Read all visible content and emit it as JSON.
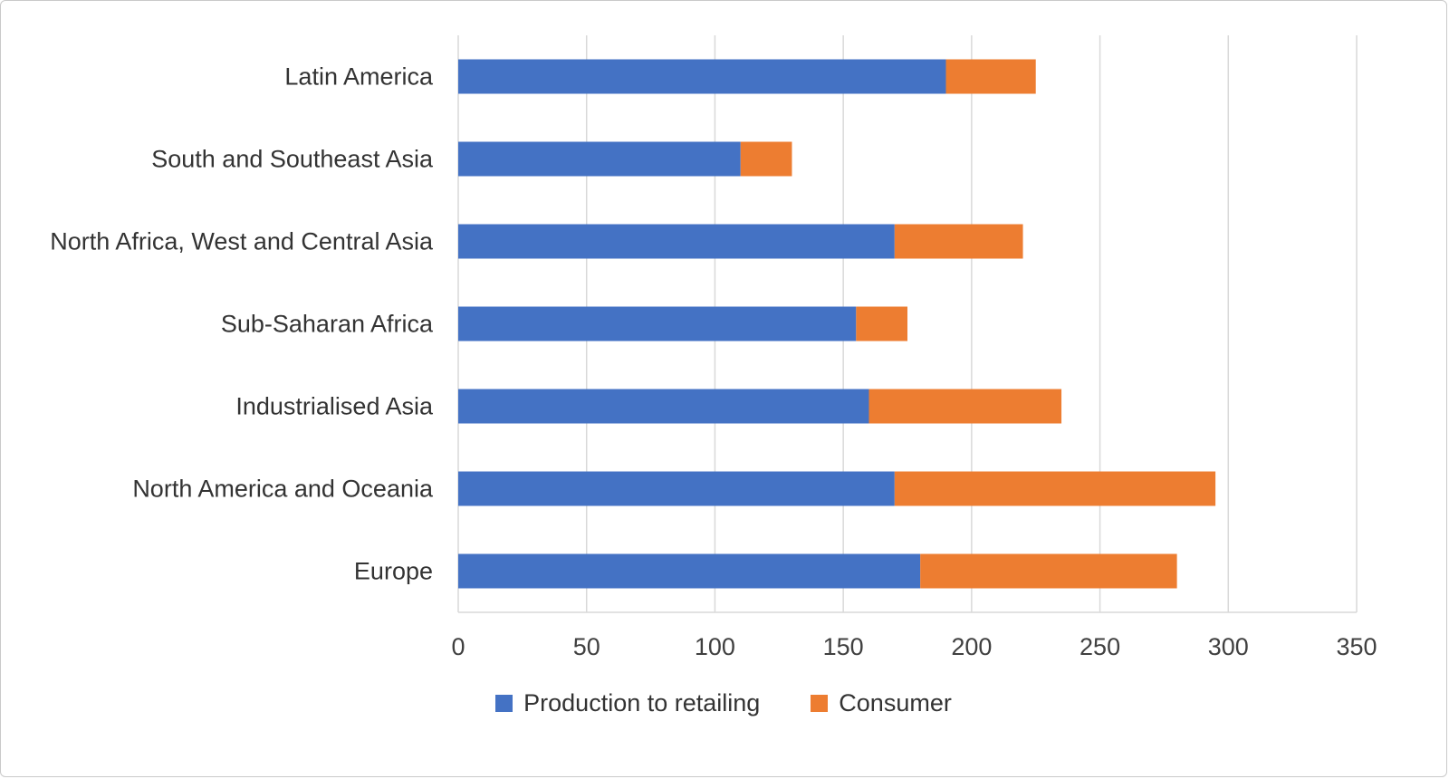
{
  "chart_data": {
    "type": "bar",
    "orientation": "horizontal",
    "stacked": true,
    "title": "",
    "xlabel": "",
    "ylabel": "",
    "categories": [
      "Latin America",
      "South and Southeast Asia",
      "North Africa, West and Central Asia",
      "Sub-Saharan Africa",
      "Industrialised Asia",
      "North America and Oceania",
      "Europe"
    ],
    "series": [
      {
        "name": "Production to retailing",
        "color": "#4472C4",
        "values": [
          190,
          110,
          170,
          155,
          160,
          170,
          180
        ]
      },
      {
        "name": "Consumer",
        "color": "#ED7D31",
        "values": [
          35,
          20,
          50,
          20,
          75,
          125,
          100
        ]
      }
    ],
    "x_ticks": [
      0,
      50,
      100,
      150,
      200,
      250,
      300,
      350
    ],
    "xlim": [
      0,
      350
    ],
    "grid": true,
    "legend_position": "bottom",
    "colors": {
      "gridline": "#D9D9D9",
      "axis_line": "#D9D9D9",
      "tick_label": "#404040",
      "category_label": "#333333",
      "background": "#FFFFFF",
      "border": "#C9C9C9"
    }
  }
}
